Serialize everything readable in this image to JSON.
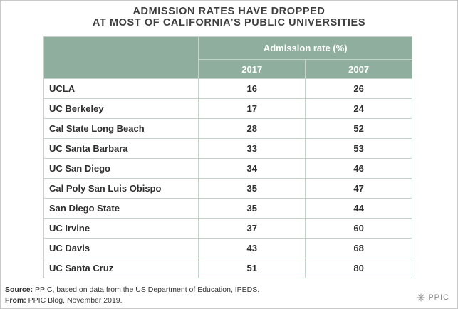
{
  "title": {
    "line1": "ADMISSION RATES HAVE DROPPED",
    "line2": "AT MOST OF CALIFORNIA’S PUBLIC UNIVERSITIES"
  },
  "table": {
    "group_header": "Admission rate (%)",
    "year_headers": [
      "2017",
      "2007"
    ],
    "rows": [
      {
        "name": "UCLA",
        "v2017": "16",
        "v2007": "26"
      },
      {
        "name": "UC Berkeley",
        "v2017": "17",
        "v2007": "24"
      },
      {
        "name": "Cal State Long Beach",
        "v2017": "28",
        "v2007": "52"
      },
      {
        "name": "UC Santa Barbara",
        "v2017": "33",
        "v2007": "53"
      },
      {
        "name": "UC San Diego",
        "v2017": "34",
        "v2007": "46"
      },
      {
        "name": "Cal Poly San Luis Obispo",
        "v2017": "35",
        "v2007": "47"
      },
      {
        "name": "San Diego State",
        "v2017": "35",
        "v2007": "44"
      },
      {
        "name": "UC Irvine",
        "v2017": "37",
        "v2007": "60"
      },
      {
        "name": "UC Davis",
        "v2017": "43",
        "v2007": "68"
      },
      {
        "name": "UC Santa Cruz",
        "v2017": "51",
        "v2007": "80"
      }
    ]
  },
  "notes": {
    "source_label": "Source:",
    "source_text": " PPIC, based on data from the US Department of Education, IPEDS.",
    "from_label": "From:",
    "from_text": " PPIC Blog, November 2019."
  },
  "logo": {
    "text": "PPIC",
    "icon": "ppic-starburst-icon"
  },
  "colors": {
    "header_bg": "#8fae9d",
    "border": "#c4d3ca",
    "title": "#3f3f3f"
  },
  "chart_data": {
    "type": "table",
    "title": "ADMISSION RATES HAVE DROPPED AT MOST OF CALIFORNIA’S PUBLIC UNIVERSITIES",
    "columns": [
      "",
      "2017",
      "2007"
    ],
    "column_group": "Admission rate (%)",
    "categories": [
      "UCLA",
      "UC Berkeley",
      "Cal State Long Beach",
      "UC Santa Barbara",
      "UC San Diego",
      "Cal Poly San Luis Obispo",
      "San Diego State",
      "UC Irvine",
      "UC Davis",
      "UC Santa Cruz"
    ],
    "series": [
      {
        "name": "2017",
        "values": [
          16,
          17,
          28,
          33,
          34,
          35,
          35,
          37,
          43,
          51
        ]
      },
      {
        "name": "2007",
        "values": [
          26,
          24,
          52,
          53,
          46,
          47,
          44,
          60,
          68,
          80
        ]
      }
    ]
  }
}
